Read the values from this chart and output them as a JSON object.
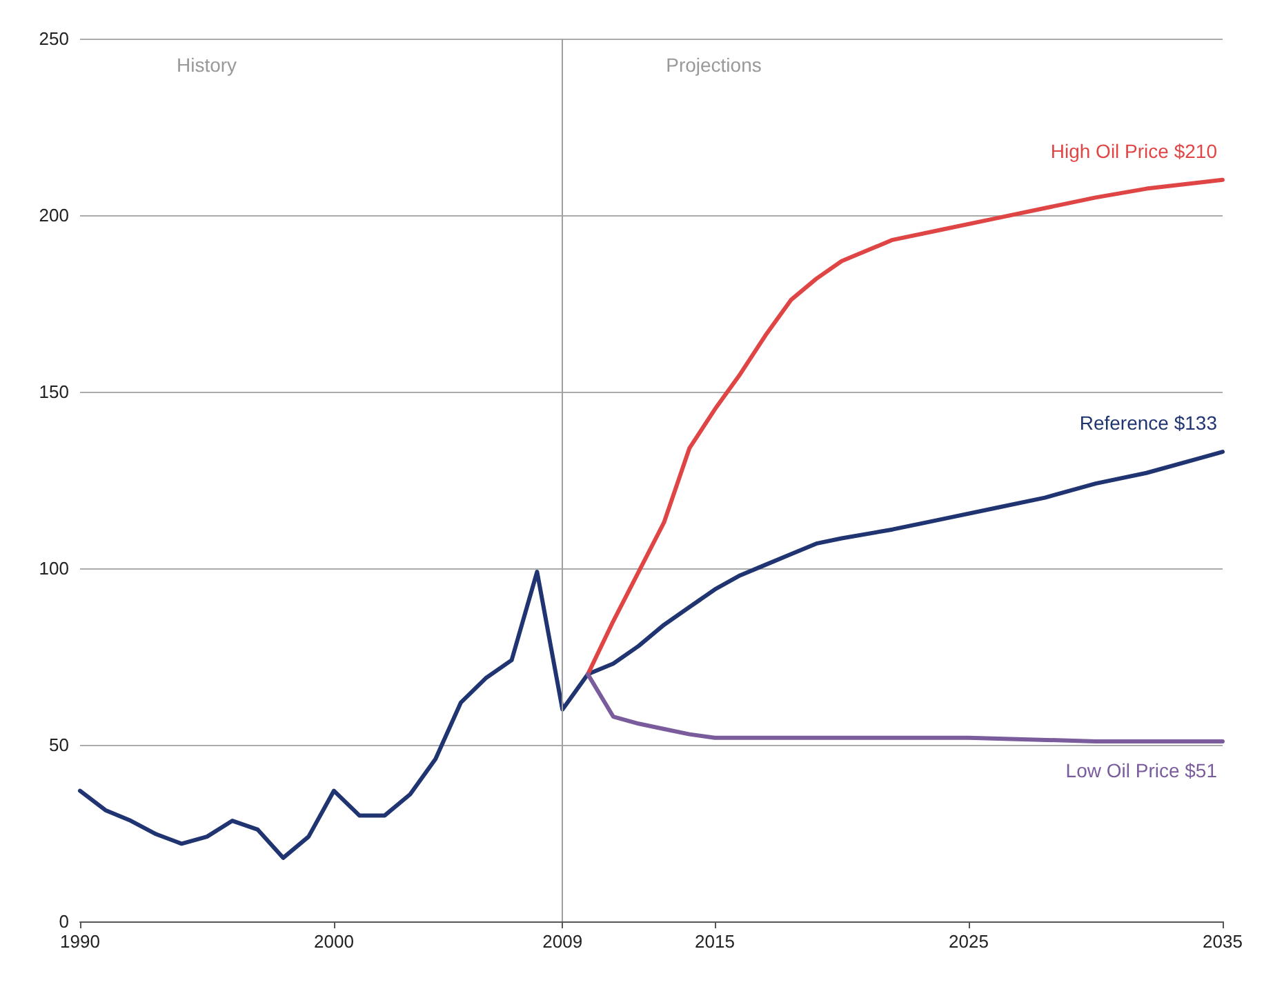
{
  "chart_data": {
    "type": "line",
    "xlim": [
      1990,
      2035
    ],
    "xticks": [
      1990,
      2000,
      2009,
      2015,
      2025,
      2035
    ],
    "ylim": [
      0,
      250
    ],
    "yticks": [
      0,
      50,
      100,
      150,
      200,
      250
    ],
    "grid": "y",
    "marker": "none",
    "line_style": "solid",
    "series": [
      {
        "color": "#1f3470",
        "x": [
          1990,
          1991,
          1992,
          1993,
          1994,
          1995,
          1996,
          1997,
          1998,
          1999,
          2000,
          2001,
          2002,
          2003,
          2004,
          2005,
          2006,
          2007,
          2008,
          2009,
          2010
        ],
        "values": [
          37,
          31.5,
          28.5,
          24.7,
          22,
          24,
          28.5,
          26,
          18,
          24,
          37,
          30,
          30,
          36,
          46,
          62,
          69,
          74,
          99,
          60,
          70
        ]
      },
      {
        "color": "#1f3470",
        "x": [
          2010,
          2011,
          2012,
          2013,
          2014,
          2015,
          2016,
          2017,
          2018,
          2019,
          2020,
          2022,
          2024,
          2026,
          2028,
          2030,
          2032,
          2034,
          2035
        ],
        "values": [
          70,
          73,
          78,
          84,
          89,
          94,
          98,
          101,
          104,
          107,
          108.5,
          111,
          114,
          117,
          120,
          124,
          127,
          131,
          133
        ]
      },
      {
        "color": "#e04545",
        "x": [
          2010,
          2011,
          2012,
          2013,
          2014,
          2015,
          2016,
          2017,
          2018,
          2019,
          2020,
          2022,
          2024,
          2026,
          2028,
          2030,
          2032,
          2035
        ],
        "values": [
          70,
          85,
          99,
          113,
          134,
          145,
          155,
          166,
          176,
          182,
          187,
          193,
          196,
          199,
          202,
          205,
          207.5,
          210
        ]
      },
      {
        "color": "#7a5c9c",
        "x": [
          2010,
          2011,
          2012,
          2013,
          2014,
          2015,
          2020,
          2025,
          2030,
          2035
        ],
        "values": [
          70,
          58,
          56,
          54.5,
          53,
          52,
          52,
          52,
          51,
          51
        ]
      }
    ],
    "ref_lines": [
      {
        "axis": "x",
        "value": 2009,
        "color": "#a0a0a0"
      }
    ],
    "annotations": [
      "History",
      "Projections",
      "Reference $133",
      "High Oil Price $210",
      "Low Oil Price $51"
    ]
  }
}
